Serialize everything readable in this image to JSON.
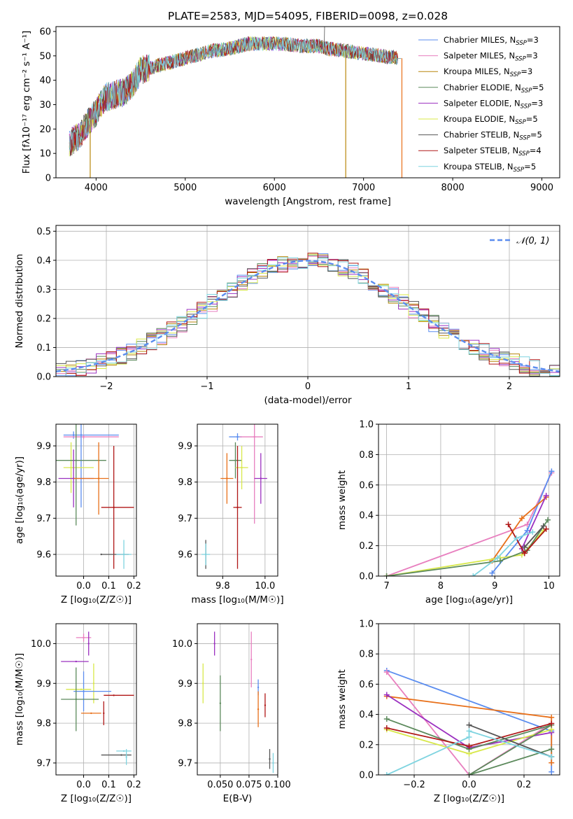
{
  "figure": {
    "title": "PLATE=2583, MJD=54095, FIBERID=0098, z=0.028"
  },
  "colors": {
    "Chabrier MILES": "#5b8def",
    "Salpeter MILES": "#e87fbf",
    "Kroupa MILES": "#b8860b",
    "Chabrier ELODIE": "#5c8a5c",
    "Salpeter ELODIE": "#9b30c0",
    "Kroupa ELODIE": "#d8e84a",
    "Chabrier STELIB": "#555555",
    "Salpeter STELIB": "#b01818",
    "Kroupa STELIB": "#7fd4e0",
    "orange": "#e8701a",
    "gauss": "#5b8def"
  },
  "chart_data": [
    {
      "id": "spectrum",
      "type": "line",
      "xlabel": "wavelength [Angstrom, rest frame]",
      "ylabel": "Flux [fλ10⁻¹⁷ erg cm⁻² s⁻¹ A⁻¹]",
      "xlim": [
        3550,
        9200
      ],
      "ylim": [
        0,
        62
      ],
      "xticks": [
        4000,
        5000,
        6000,
        7000,
        8000,
        9000
      ],
      "yticks": [
        0,
        10,
        20,
        30,
        40,
        50,
        60
      ],
      "grid": false,
      "legend_position": "top-right",
      "continuum": {
        "wavelength": [
          3700,
          3800,
          3900,
          4000,
          4100,
          4200,
          4300,
          4400,
          4500,
          4700,
          4900,
          5100,
          5300,
          5500,
          5700,
          5900,
          6100,
          6300,
          6500,
          6600,
          6800,
          7000,
          7200,
          7400
        ],
        "flux": [
          14,
          17,
          22,
          27,
          33,
          34,
          35,
          38,
          44,
          46,
          48,
          50,
          52,
          53,
          55,
          55,
          55,
          54,
          54,
          53,
          52,
          51,
          50,
          49
        ]
      },
      "features": [
        {
          "wavelength": 3934,
          "flux": 0,
          "note": "absorption dip to zero"
        },
        {
          "wavelength": 6800,
          "flux": 0,
          "note": "sharp drop"
        },
        {
          "wavelength": 7430,
          "flux": 0,
          "note": "spectrum cutoff"
        },
        {
          "wavelength": 6563,
          "flux": 62,
          "note": "emission spike"
        }
      ],
      "legend": [
        {
          "name": "Chabrier MILES",
          "nssp": "3"
        },
        {
          "name": "Salpeter MILES",
          "nssp": "3"
        },
        {
          "name": "Kroupa MILES",
          "nssp": "3"
        },
        {
          "name": "Chabrier ELODIE",
          "nssp": "5"
        },
        {
          "name": "Salpeter ELODIE",
          "nssp": "3"
        },
        {
          "name": "Kroupa ELODIE",
          "nssp": "5"
        },
        {
          "name": "Chabrier STELIB",
          "nssp": "5"
        },
        {
          "name": "Salpeter STELIB",
          "nssp": "4"
        },
        {
          "name": "Kroupa STELIB",
          "nssp": "5"
        }
      ]
    },
    {
      "id": "residuals",
      "type": "line",
      "xlabel": "(data-model)/error",
      "ylabel": "Normed distribution",
      "xlim": [
        -2.5,
        2.5
      ],
      "ylim": [
        0,
        0.52
      ],
      "xticks": [
        -2,
        -1,
        0,
        1,
        2
      ],
      "yticks": [
        0.0,
        0.1,
        0.2,
        0.3,
        0.4,
        0.5
      ],
      "grid": true,
      "legend_position": "top-right",
      "gauss_label": "𝒩(0, 1)",
      "bin_width": 0.1,
      "bin_start": -2.5
    },
    {
      "id": "age_vs_Z",
      "type": "scatter",
      "xlabel": "Z [log₁₀(Z/Z☉)]",
      "ylabel": "age  [log₁₀(age/yr)]",
      "xlim": [
        -0.11,
        0.21
      ],
      "ylim": [
        9.54,
        9.96
      ],
      "xticks": [
        0.0,
        0.1,
        0.2
      ],
      "yticks": [
        9.6,
        9.7,
        9.8,
        9.9
      ],
      "grid": true,
      "points": [
        {
          "model": "Chabrier MILES",
          "x": -0.04,
          "y": 9.93,
          "xerr": [
            0.04,
            0.18
          ],
          "yerr": 0.01
        },
        {
          "model": "Salpeter MILES",
          "x": 0.0,
          "y": 9.925,
          "xerr": [
            0.08,
            0.14
          ],
          "yerr": 0.005
        },
        {
          "model": "Chabrier MILES",
          "x": -0.01,
          "y": 9.93,
          "yerr": 0.2
        },
        {
          "model": "Kroupa ELODIE",
          "x": -0.05,
          "y": 9.84,
          "xerr": [
            0.03,
            0.09
          ],
          "yerr": 0.07
        },
        {
          "model": "Chabrier ELODIE",
          "x": -0.03,
          "y": 9.86,
          "xerr": [
            0.08,
            0.12
          ],
          "yerr": 0.18
        },
        {
          "model": "Salpeter ELODIE",
          "x": -0.04,
          "y": 9.81,
          "xerr": [
            0.06,
            0.08
          ],
          "yerr": 0.08
        },
        {
          "model": "orange",
          "x": 0.06,
          "y": 9.81,
          "xerr": [
            0.1,
            0.04
          ],
          "yerr": 0.1
        },
        {
          "model": "Salpeter STELIB",
          "x": 0.12,
          "y": 9.73,
          "xerr": [
            0.05,
            0.08
          ],
          "yerr": 0.17
        },
        {
          "model": "Chabrier STELIB",
          "x": 0.07,
          "y": 9.6,
          "xerr": [
            0.0,
            0.11
          ]
        },
        {
          "model": "Kroupa STELIB",
          "x": 0.16,
          "y": 9.6,
          "xerr": [
            0.03,
            0.03
          ],
          "yerr": 0.04
        }
      ]
    },
    {
      "id": "age_vs_mass",
      "type": "scatter",
      "xlabel": "mass [log₁₀(M/M☉)]",
      "ylabel": "",
      "xlim": [
        9.68,
        10.06
      ],
      "ylim": [
        9.54,
        9.96
      ],
      "xticks": [
        9.8,
        10.0
      ],
      "yticks": [
        9.6,
        9.7,
        9.8,
        9.9
      ],
      "grid": true,
      "points": [
        {
          "model": "Chabrier MILES",
          "x": 9.87,
          "y": 9.925,
          "xerr": [
            0.04,
            0.02
          ],
          "yerr": 0.01
        },
        {
          "model": "Salpeter MILES",
          "x": 9.95,
          "y": 9.925,
          "xerr": [
            0.07,
            0.04
          ],
          "yerr": 0.24
        },
        {
          "model": "Chabrier ELODIE",
          "x": 9.86,
          "y": 9.86,
          "xerr": [
            0.03,
            0.03
          ],
          "yerr": 0.05
        },
        {
          "model": "Kroupa ELODIE",
          "x": 9.89,
          "y": 9.84,
          "xerr": [
            0.03,
            0.03
          ],
          "yerr": 0.06
        },
        {
          "model": "orange",
          "x": 9.82,
          "y": 9.81,
          "xerr": [
            0.03,
            0.03
          ],
          "yerr": 0.07
        },
        {
          "model": "Salpeter ELODIE",
          "x": 9.98,
          "y": 9.81,
          "xerr": [
            0.03,
            0.03
          ],
          "yerr": 0.07
        },
        {
          "model": "Salpeter STELIB",
          "x": 9.87,
          "y": 9.73,
          "xerr": [
            0.02,
            0.02
          ],
          "yerr": 0.17
        },
        {
          "model": "Chabrier STELIB",
          "x": 9.72,
          "y": 9.6,
          "yerr": 0.04
        },
        {
          "model": "Kroupa STELIB",
          "x": 9.72,
          "y": 9.6,
          "xerr": [
            0.02,
            0.02
          ],
          "yerr": 0.03
        }
      ]
    },
    {
      "id": "weight_vs_age",
      "type": "line",
      "xlabel": "age  [log₁₀(age/yr)]",
      "ylabel": "mass weight",
      "xlim": [
        6.85,
        10.2
      ],
      "ylim": [
        0,
        1.0
      ],
      "xticks": [
        7,
        8,
        9,
        10
      ],
      "yticks": [
        0.0,
        0.2,
        0.4,
        0.6,
        0.8,
        1.0
      ],
      "grid": true,
      "series": [
        {
          "model": "Salpeter MILES",
          "x": [
            7.0,
            9.6,
            10.05
          ],
          "y": [
            0.0,
            0.34,
            0.68
          ]
        },
        {
          "model": "Chabrier MILES",
          "x": [
            8.95,
            9.6,
            10.05
          ],
          "y": [
            0.02,
            0.3,
            0.69
          ]
        },
        {
          "model": "orange",
          "x": [
            8.95,
            9.5,
            9.95
          ],
          "y": [
            0.1,
            0.38,
            0.52
          ]
        },
        {
          "model": "Salpeter ELODIE",
          "x": [
            9.5,
            9.95
          ],
          "y": [
            0.18,
            0.53
          ]
        },
        {
          "model": "Kroupa ELODIE",
          "x": [
            7.0,
            9.1,
            9.5,
            9.9
          ],
          "y": [
            0.0,
            0.12,
            0.14,
            0.3
          ]
        },
        {
          "model": "Chabrier ELODIE",
          "x": [
            7.0,
            9.1,
            9.6,
            9.98
          ],
          "y": [
            0.0,
            0.1,
            0.17,
            0.37
          ]
        },
        {
          "model": "Salpeter STELIB",
          "x": [
            9.25,
            9.55,
            9.95
          ],
          "y": [
            0.34,
            0.15,
            0.31
          ]
        },
        {
          "model": "Chabrier STELIB",
          "x": [
            9.55,
            9.9
          ],
          "y": [
            0.19,
            0.33
          ]
        },
        {
          "model": "Kroupa STELIB",
          "x": [
            8.6,
            9.05,
            9.4,
            9.7
          ],
          "y": [
            0.0,
            0.12,
            0.25,
            0.29
          ]
        }
      ]
    },
    {
      "id": "mass_vs_Z",
      "type": "scatter",
      "xlabel": "Z [log₁₀(Z/Z☉)]",
      "ylabel": "mass [log₁₀(M/M☉)]",
      "xlim": [
        -0.11,
        0.21
      ],
      "ylim": [
        9.67,
        10.05
      ],
      "xticks": [
        0.0,
        0.1,
        0.2
      ],
      "yticks": [
        9.7,
        9.8,
        9.9,
        10.0
      ],
      "grid": true,
      "points": [
        {
          "model": "Salpeter MILES",
          "x": 0.0,
          "y": 10.015,
          "xerr": [
            0.03,
            0.03
          ],
          "yerr": 0.01
        },
        {
          "model": "Salpeter ELODIE",
          "x": 0.02,
          "y": 10.0,
          "yerr": 0.03
        },
        {
          "model": "Salpeter ELODIE",
          "x": -0.03,
          "y": 9.955,
          "xerr": [
            0.06,
            0.05
          ]
        },
        {
          "model": "Kroupa ELODIE",
          "x": 0.04,
          "y": 9.9,
          "yerr": 0.05
        },
        {
          "model": "Chabrier MILES",
          "x": 0.0,
          "y": 9.88,
          "xerr": [
            0.04,
            0.11
          ],
          "yerr": 0.05
        },
        {
          "model": "Kroupa ELODIE",
          "x": -0.01,
          "y": 9.885,
          "xerr": [
            0.06,
            0.04
          ]
        },
        {
          "model": "Salpeter STELIB",
          "x": 0.12,
          "y": 9.87,
          "xerr": [
            0.04,
            0.08
          ]
        },
        {
          "model": "Chabrier ELODIE",
          "x": -0.03,
          "y": 9.86,
          "xerr": [
            0.06,
            0.09
          ],
          "yerr": 0.08
        },
        {
          "model": "orange",
          "x": 0.03,
          "y": 9.825,
          "xerr": [
            0.04,
            0.04
          ]
        },
        {
          "model": "Salpeter STELIB",
          "x": 0.08,
          "y": 9.825,
          "yerr": 0.03
        },
        {
          "model": "Kroupa STELIB",
          "x": 0.16,
          "y": 9.73,
          "xerr": [
            0.03,
            0.03
          ]
        },
        {
          "model": "Chabrier STELIB",
          "x": 0.15,
          "y": 9.72,
          "xerr": [
            0.08,
            0.04
          ]
        },
        {
          "model": "Kroupa STELIB",
          "x": 0.17,
          "y": 9.715,
          "yerr": 0.02
        }
      ]
    },
    {
      "id": "mass_vs_ebv",
      "type": "scatter",
      "xlabel": "E(B-V)",
      "ylabel": "",
      "xlim": [
        0.03,
        0.1
      ],
      "ylim": [
        9.67,
        10.05
      ],
      "xticks": [
        0.05,
        0.075,
        0.1
      ],
      "xticklabels": [
        "0.050",
        "0.075",
        "0.100"
      ],
      "yticks": [
        9.7,
        9.8,
        9.9,
        10.0
      ],
      "grid": true,
      "points": [
        {
          "model": "Salpeter ELODIE",
          "x": 0.045,
          "y": 10.0,
          "yerr": 0.03
        },
        {
          "model": "Kroupa ELODIE",
          "x": 0.035,
          "y": 9.9,
          "yerr": 0.05
        },
        {
          "model": "Chabrier ELODIE",
          "x": 0.05,
          "y": 9.85,
          "yerr": 0.07
        },
        {
          "model": "Salpeter MILES",
          "x": 0.077,
          "y": 9.96,
          "yerr": 0.07
        },
        {
          "model": "Chabrier MILES",
          "x": 0.083,
          "y": 9.89,
          "yerr": 0.02
        },
        {
          "model": "orange",
          "x": 0.083,
          "y": 9.835,
          "yerr": 0.045
        },
        {
          "model": "Salpeter STELIB",
          "x": 0.089,
          "y": 9.845,
          "yerr": 0.03
        },
        {
          "model": "Chabrier STELIB",
          "x": 0.093,
          "y": 9.71,
          "yerr": 0.025
        },
        {
          "model": "Kroupa STELIB",
          "x": 0.096,
          "y": 9.7,
          "yerr": 0.025
        }
      ]
    },
    {
      "id": "weight_vs_Z",
      "type": "line",
      "xlabel": "Z [log₁₀(Z/Z☉)]",
      "ylabel": "mass weight",
      "xlim": [
        -0.33,
        0.33
      ],
      "ylim": [
        0,
        1.0
      ],
      "xticks": [
        -0.2,
        0.0,
        0.2
      ],
      "yticks": [
        0.0,
        0.2,
        0.4,
        0.6,
        0.8,
        1.0
      ],
      "grid": true,
      "series": [
        {
          "model": "Chabrier MILES",
          "x": [
            -0.3,
            0.3,
            0.3
          ],
          "y": [
            0.69,
            0.29,
            0.02
          ]
        },
        {
          "model": "Salpeter MILES",
          "x": [
            -0.3,
            0.0,
            0.3
          ],
          "y": [
            0.68,
            0.0,
            0.34
          ]
        },
        {
          "model": "orange",
          "x": [
            -0.3,
            0.3,
            0.3
          ],
          "y": [
            0.52,
            0.38,
            0.08
          ]
        },
        {
          "model": "Salpeter ELODIE",
          "x": [
            -0.3,
            0.0,
            0.3
          ],
          "y": [
            0.53,
            0.18,
            0.28
          ]
        },
        {
          "model": "Kroupa ELODIE",
          "x": [
            -0.3,
            0.0,
            0.3
          ],
          "y": [
            0.3,
            0.14,
            0.3
          ]
        },
        {
          "model": "Chabrier ELODIE",
          "x": [
            -0.3,
            0.0,
            0.3,
            0.0,
            0.3
          ],
          "y": [
            0.37,
            0.17,
            0.33,
            0.0,
            0.17
          ]
        },
        {
          "model": "Salpeter STELIB",
          "x": [
            -0.3,
            0.0,
            0.3
          ],
          "y": [
            0.31,
            0.19,
            0.34
          ]
        },
        {
          "model": "Chabrier STELIB",
          "x": [
            0.0,
            0.3
          ],
          "y": [
            0.33,
            0.12
          ]
        },
        {
          "model": "Kroupa STELIB",
          "x": [
            -0.3,
            0.0,
            0.0,
            0.3
          ],
          "y": [
            0.0,
            0.25,
            0.29,
            0.12
          ]
        }
      ]
    }
  ]
}
